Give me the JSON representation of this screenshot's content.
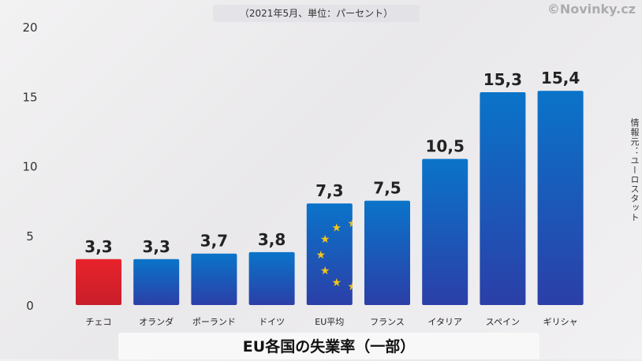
{
  "subtitle": "（2021年5月、単位：パーセント）",
  "watermark": "©Novinky.cz",
  "source_note": "情報元：ユーロスタット",
  "colors": {
    "highlight": "#e0212b",
    "bar": "#1e5bb8",
    "eu_star": "#f5c518"
  },
  "chart_data": {
    "type": "bar",
    "title": "EU各国の失業率（一部）",
    "subtitle": "（2021年5月、単位：パーセント）",
    "categories": [
      "チェコ",
      "オランダ",
      "ポーランド",
      "ドイツ",
      "EU平均",
      "フランス",
      "イタリア",
      "スペイン",
      "ギリシャ"
    ],
    "values": [
      3.3,
      3.3,
      3.7,
      3.8,
      7.3,
      7.5,
      10.5,
      15.3,
      15.4
    ],
    "value_labels": [
      "3,3",
      "3,3",
      "3,7",
      "3,8",
      "7,3",
      "7,5",
      "10,5",
      "15,3",
      "15,4"
    ],
    "highlight_category": "チェコ",
    "eu_category": "EU平均",
    "ylim": [
      0,
      20
    ],
    "yticks": [
      0,
      5,
      10,
      15,
      20
    ],
    "grid": false
  }
}
